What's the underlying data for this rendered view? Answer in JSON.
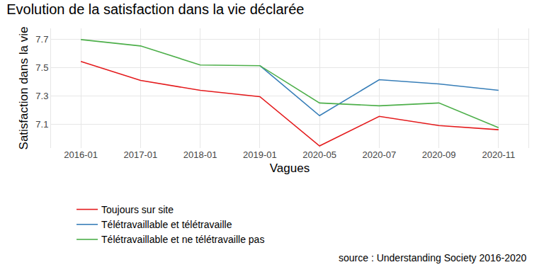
{
  "chart_data": {
    "type": "line",
    "title": "Evolution de la satisfaction dans la vie déclarée",
    "x_label": "Vagues",
    "y_label": "Satisfaction dans la vie",
    "source": "source : Understanding Society 2016-2020",
    "categories": [
      "2016-01",
      "2017-01",
      "2018-01",
      "2019-01",
      "2020-05",
      "2020-07",
      "2020-09",
      "2020-11"
    ],
    "series": [
      {
        "name": "Toujours sur site",
        "color": "#E41A1C",
        "values": [
          7.545,
          7.41,
          7.34,
          7.295,
          6.945,
          7.155,
          7.09,
          7.06
        ]
      },
      {
        "name": "Télétravaillable et télétravaille",
        "color": "#377EB8",
        "values": [
          null,
          null,
          null,
          7.515,
          7.16,
          7.415,
          7.385,
          7.34
        ]
      },
      {
        "name": "Télétravaillable et ne télétravaille pas",
        "color": "#4DAF4A",
        "values": [
          7.7,
          7.655,
          7.52,
          7.515,
          7.25,
          7.23,
          7.25,
          7.075
        ]
      }
    ],
    "ylim": [
      6.93,
      7.78
    ],
    "yticks": [
      7.1,
      7.3,
      7.5,
      7.7
    ],
    "grid": true,
    "legend": "bottom"
  }
}
